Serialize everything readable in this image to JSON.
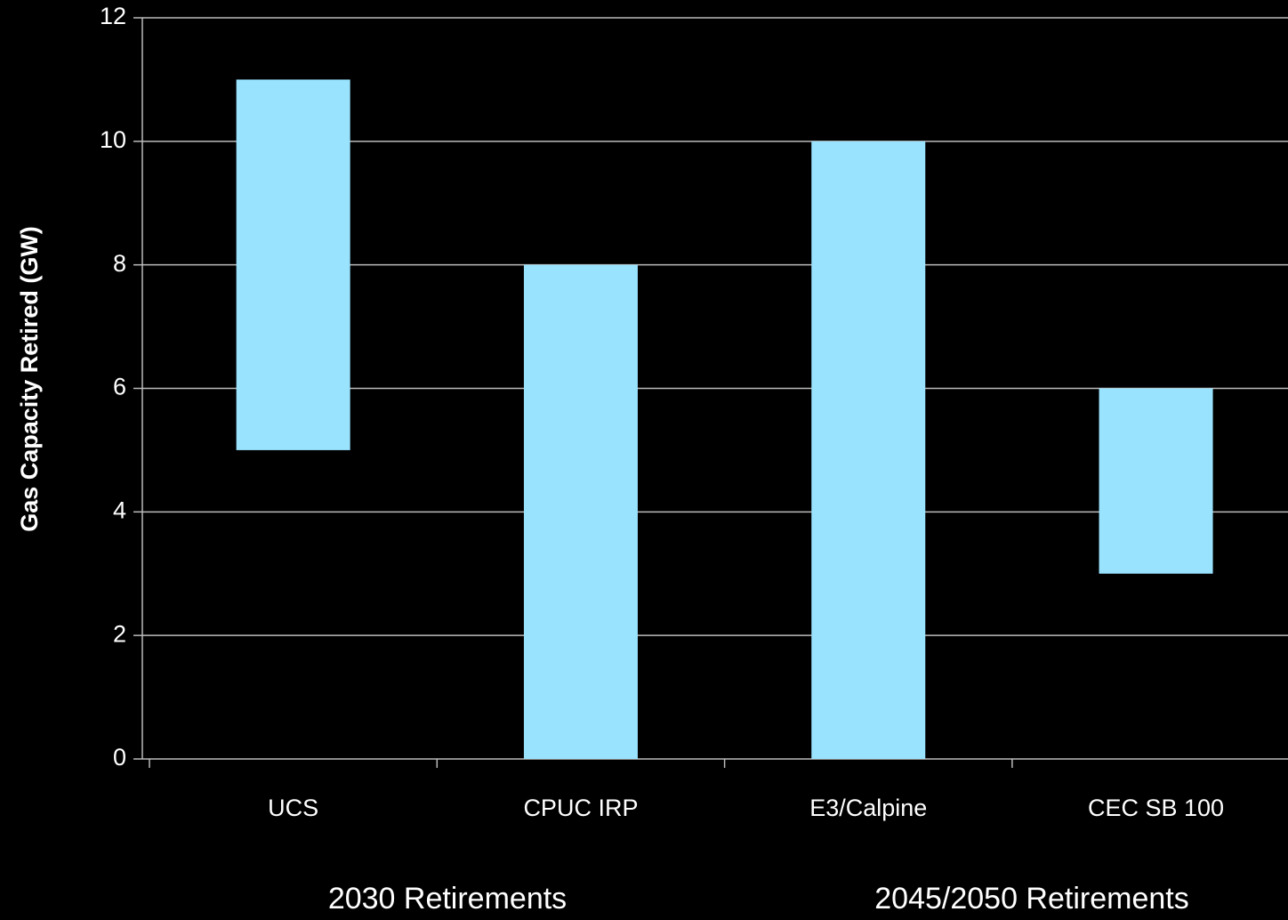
{
  "chart_data": {
    "type": "floating_bar",
    "ylabel": "Gas Capacity Retired (GW)",
    "categories": [
      "UCS",
      "CPUC IRP",
      "E3/Calpine",
      "CEC SB 100"
    ],
    "low": [
      5,
      0,
      0,
      3
    ],
    "high": [
      11,
      8,
      10,
      6
    ],
    "color": "#99e3ff",
    "ylim": [
      0,
      12
    ],
    "yticks": [
      0,
      2,
      4,
      6,
      8,
      10,
      12
    ],
    "grid": true,
    "groups": [
      "2030 Retirements",
      "2045/2050 Retirements"
    ]
  }
}
